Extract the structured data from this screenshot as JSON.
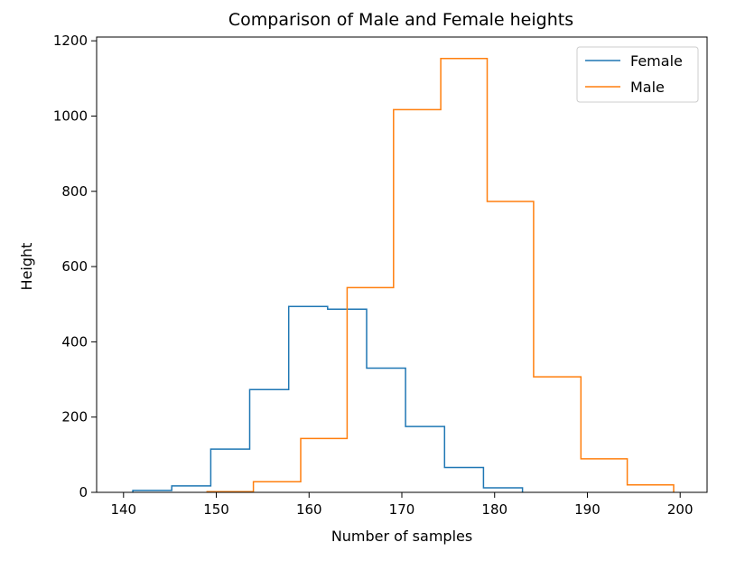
{
  "chart_data": {
    "type": "histogram",
    "title": "Comparison of Male and Female heights",
    "xlabel": "Number of samples",
    "ylabel": "Height",
    "xlim": [
      137.1,
      202.9
    ],
    "ylim": [
      0,
      1210
    ],
    "xticks": [
      140,
      150,
      160,
      170,
      180,
      190,
      200
    ],
    "yticks": [
      0,
      200,
      400,
      600,
      800,
      1000,
      1200
    ],
    "legend_position": "top-right",
    "series": [
      {
        "name": "Female",
        "color": "#1f77b4",
        "bin_edges": [
          141.0,
          145.2,
          149.4,
          153.6,
          157.8,
          162.0,
          166.2,
          170.4,
          174.6,
          178.8,
          183.0
        ],
        "counts": [
          5,
          17,
          115,
          273,
          494,
          487,
          330,
          175,
          66,
          12
        ]
      },
      {
        "name": "Male",
        "color": "#ff7f0e",
        "bin_edges": [
          149.0,
          154.0,
          159.1,
          164.1,
          169.1,
          174.2,
          179.2,
          184.2,
          189.3,
          194.3,
          199.3
        ],
        "counts": [
          2,
          28,
          143,
          544,
          1017,
          1153,
          773,
          307,
          89,
          20
        ]
      }
    ]
  }
}
